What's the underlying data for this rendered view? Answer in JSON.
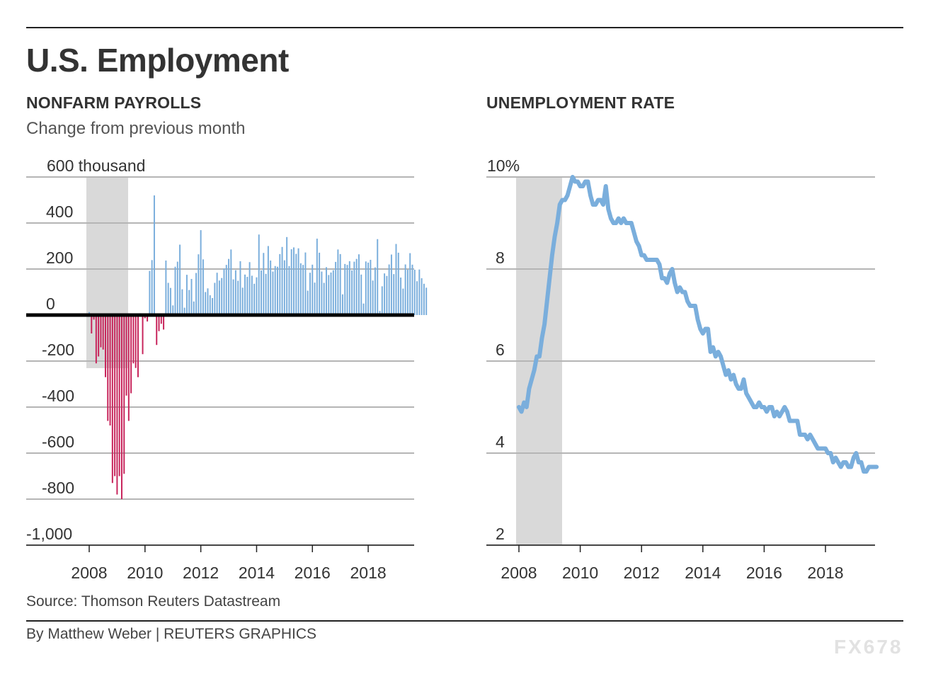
{
  "title": "U.S. Employment",
  "source": "Source: Thomson Reuters Datastream",
  "credit": "By Matthew Weber | REUTERS GRAPHICS",
  "watermark": "FX678",
  "colors": {
    "positive": "#7aaedc",
    "negative": "#c7235a",
    "recession": "#d9d9d9",
    "line": "#7aaedc",
    "grid": "#b5b5b5",
    "zero": "#000000"
  },
  "chart_data": [
    {
      "type": "bar",
      "title": "NONFARM PAYROLLS",
      "subtitle": "Change from previous month",
      "y_unit_label": "600 thousand",
      "y_ticks": [
        600,
        400,
        200,
        0,
        -200,
        -400,
        -600,
        -800,
        -1000
      ],
      "y_tick_labels": [
        "600 thousand",
        "400",
        "200",
        "0",
        "-200",
        "-400",
        "-600",
        "-800",
        "-1,000"
      ],
      "ylim": [
        -1000,
        600
      ],
      "x_ticks": [
        "2008",
        "2010",
        "2012",
        "2014",
        "2016",
        "2018"
      ],
      "x_start": "2008-01",
      "x_range": [
        2008.0,
        2019.7
      ],
      "recession": [
        "2008-01",
        "2009-06"
      ],
      "grid": true,
      "values": [
        13,
        -80,
        -20,
        -210,
        -180,
        -140,
        -150,
        -270,
        -460,
        -480,
        -730,
        -700,
        -780,
        -700,
        -800,
        -690,
        -350,
        -460,
        -340,
        -210,
        -230,
        -270,
        8,
        -170,
        -14,
        -28,
        192,
        239,
        520,
        -130,
        -70,
        -38,
        -63,
        237,
        140,
        118,
        42,
        210,
        232,
        306,
        112,
        32,
        175,
        109,
        157,
        59,
        183,
        264,
        369,
        242,
        100,
        116,
        86,
        74,
        140,
        184,
        150,
        161,
        202,
        218,
        244,
        285,
        155,
        195,
        149,
        234,
        119,
        176,
        166,
        230,
        171,
        136,
        164,
        350,
        194,
        270,
        179,
        300,
        237,
        189,
        213,
        210,
        265,
        296,
        238,
        339,
        213,
        286,
        294,
        266,
        290,
        225,
        218,
        272,
        106,
        184,
        219,
        141,
        332,
        271,
        189,
        140,
        208,
        174,
        185,
        195,
        231,
        285,
        265,
        90,
        222,
        218,
        234,
        194,
        232,
        244,
        264,
        176,
        50,
        233,
        228,
        240,
        150,
        207,
        330,
        18,
        125,
        181,
        170,
        220,
        263,
        178,
        309,
        271,
        163,
        115,
        220,
        197,
        269,
        219,
        197,
        147,
        198,
        160,
        136,
        119
      ]
    },
    {
      "type": "line",
      "title": "UNEMPLOYMENT RATE",
      "y_ticks": [
        10,
        8,
        6,
        4,
        2
      ],
      "y_tick_labels": [
        "10%",
        "8",
        "6",
        "4",
        "2"
      ],
      "ylim": [
        2,
        10
      ],
      "x_ticks": [
        "2008",
        "2010",
        "2012",
        "2014",
        "2016",
        "2018"
      ],
      "x_start": "2008-01",
      "x_range": [
        2008.0,
        2019.7
      ],
      "recession": [
        "2008-01",
        "2009-06"
      ],
      "grid": true,
      "values": [
        5.0,
        4.9,
        5.1,
        5.0,
        5.4,
        5.6,
        5.8,
        6.1,
        6.1,
        6.5,
        6.8,
        7.3,
        7.8,
        8.3,
        8.7,
        9.0,
        9.4,
        9.5,
        9.5,
        9.6,
        9.8,
        10.0,
        9.9,
        9.9,
        9.8,
        9.8,
        9.9,
        9.9,
        9.6,
        9.4,
        9.4,
        9.5,
        9.5,
        9.4,
        9.8,
        9.3,
        9.1,
        9.0,
        9.0,
        9.1,
        9.0,
        9.1,
        9.0,
        9.0,
        9.0,
        8.8,
        8.6,
        8.5,
        8.3,
        8.3,
        8.2,
        8.2,
        8.2,
        8.2,
        8.2,
        8.1,
        7.8,
        7.8,
        7.7,
        7.9,
        8.0,
        7.7,
        7.5,
        7.6,
        7.5,
        7.5,
        7.3,
        7.2,
        7.2,
        7.2,
        6.9,
        6.7,
        6.6,
        6.7,
        6.7,
        6.2,
        6.3,
        6.1,
        6.2,
        6.1,
        5.9,
        5.7,
        5.8,
        5.6,
        5.7,
        5.5,
        5.4,
        5.4,
        5.6,
        5.3,
        5.2,
        5.1,
        5.0,
        5.0,
        5.1,
        5.0,
        5.0,
        4.9,
        5.0,
        5.0,
        4.8,
        4.9,
        4.8,
        4.9,
        5.0,
        4.9,
        4.7,
        4.7,
        4.7,
        4.7,
        4.4,
        4.4,
        4.4,
        4.3,
        4.4,
        4.3,
        4.2,
        4.1,
        4.1,
        4.1,
        4.1,
        4.0,
        4.0,
        3.8,
        3.9,
        3.8,
        3.7,
        3.8,
        3.8,
        3.7,
        3.7,
        3.9,
        4.0,
        3.8,
        3.8,
        3.6,
        3.6,
        3.7,
        3.7,
        3.7,
        3.7
      ]
    }
  ]
}
